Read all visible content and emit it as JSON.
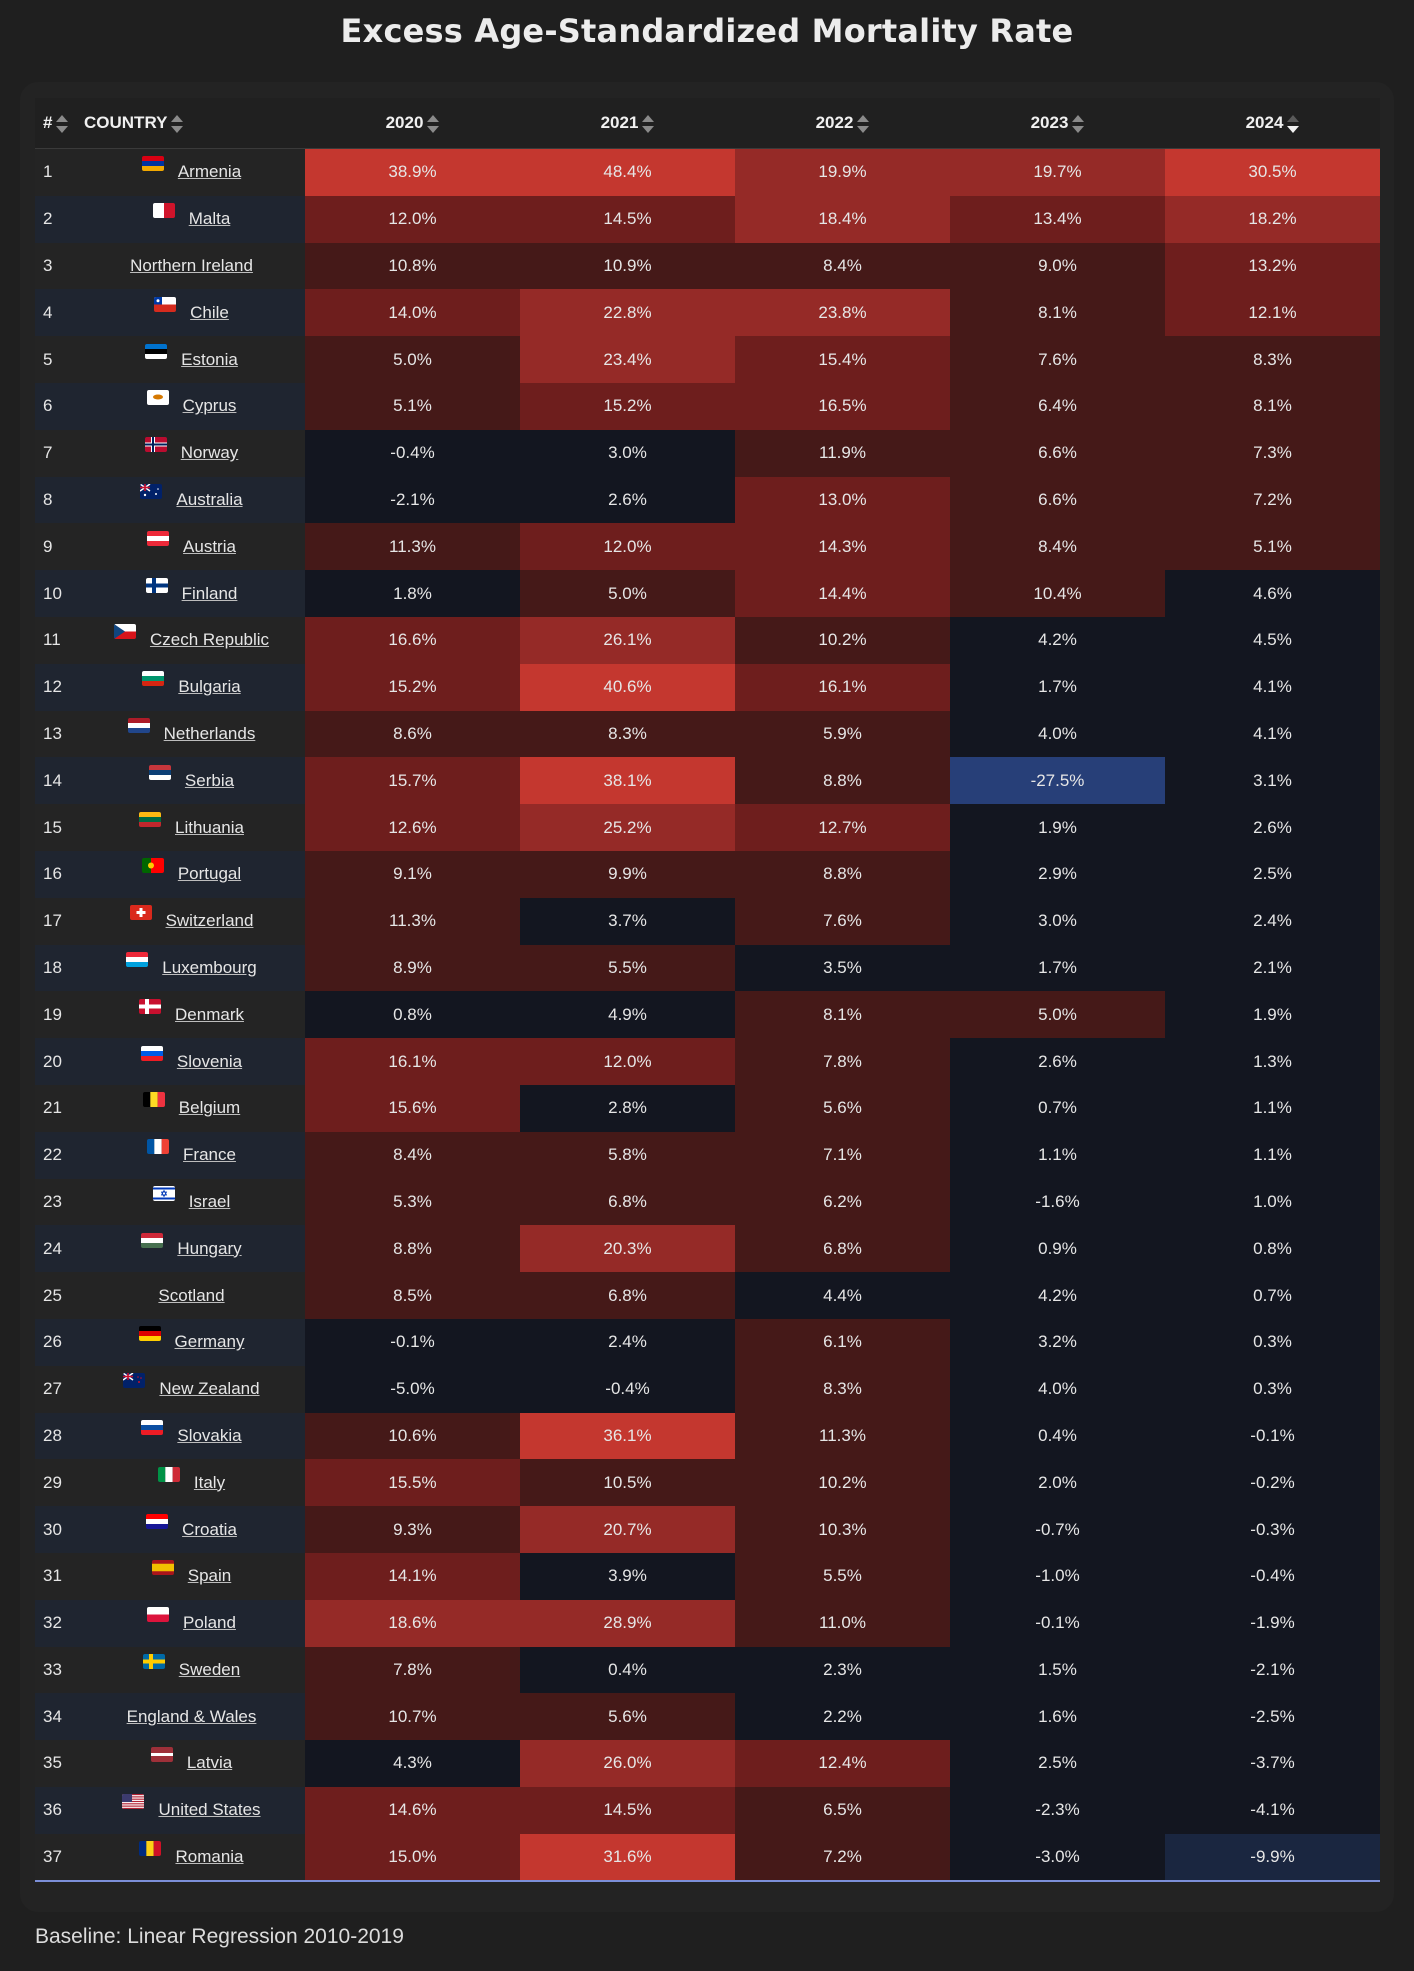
{
  "title": "Excess Age-Standardized Mortality Rate",
  "footer": "Baseline: Linear Regression 2010-2019",
  "colors": {
    "background": "#1f1f1f",
    "heat_very_high": "#c4372f",
    "heat_high": "#952a27",
    "heat_mid": "#6e1e1d",
    "heat_low": "#451918",
    "neutral": "#131620",
    "negative_mid": "#1a2640",
    "negative_strong": "#273f78",
    "sort_active": "#f2f2f2"
  },
  "table": {
    "headers": {
      "rank": "#",
      "country": "COUNTRY",
      "years": [
        "2020",
        "2021",
        "2022",
        "2023",
        "2024"
      ]
    },
    "sorted_column": "2024",
    "sort_direction": "descending",
    "rows": [
      {
        "rank": "1",
        "country": "Armenia",
        "flag": [
          "#d90012",
          "#0033a0",
          "#f2a800"
        ],
        "values": [
          "38.9%",
          "48.4%",
          "19.9%",
          "19.7%",
          "30.5%"
        ]
      },
      {
        "rank": "2",
        "country": "Malta",
        "flag": "malta",
        "values": [
          "12.0%",
          "14.5%",
          "18.4%",
          "13.4%",
          "18.2%"
        ]
      },
      {
        "rank": "3",
        "country": "Northern Ireland",
        "flag": null,
        "values": [
          "10.8%",
          "10.9%",
          "8.4%",
          "9.0%",
          "13.2%"
        ]
      },
      {
        "rank": "4",
        "country": "Chile",
        "flag": "chile",
        "values": [
          "14.0%",
          "22.8%",
          "23.8%",
          "8.1%",
          "12.1%"
        ]
      },
      {
        "rank": "5",
        "country": "Estonia",
        "flag": [
          "#0072ce",
          "#000000",
          "#ffffff"
        ],
        "values": [
          "5.0%",
          "23.4%",
          "15.4%",
          "7.6%",
          "8.3%"
        ]
      },
      {
        "rank": "6",
        "country": "Cyprus",
        "flag": "cyprus",
        "values": [
          "5.1%",
          "15.2%",
          "16.5%",
          "6.4%",
          "8.1%"
        ]
      },
      {
        "rank": "7",
        "country": "Norway",
        "flag": "norway",
        "values": [
          "-0.4%",
          "3.0%",
          "11.9%",
          "6.6%",
          "7.3%"
        ]
      },
      {
        "rank": "8",
        "country": "Australia",
        "flag": "australia",
        "values": [
          "-2.1%",
          "2.6%",
          "13.0%",
          "6.6%",
          "7.2%"
        ]
      },
      {
        "rank": "9",
        "country": "Austria",
        "flag": [
          "#ed2939",
          "#ffffff",
          "#ed2939"
        ],
        "values": [
          "11.3%",
          "12.0%",
          "14.3%",
          "8.4%",
          "5.1%"
        ]
      },
      {
        "rank": "10",
        "country": "Finland",
        "flag": "finland",
        "values": [
          "1.8%",
          "5.0%",
          "14.4%",
          "10.4%",
          "4.6%"
        ]
      },
      {
        "rank": "11",
        "country": "Czech Republic",
        "flag": "czech",
        "values": [
          "16.6%",
          "26.1%",
          "10.2%",
          "4.2%",
          "4.5%"
        ]
      },
      {
        "rank": "12",
        "country": "Bulgaria",
        "flag": [
          "#ffffff",
          "#00966e",
          "#d62612"
        ],
        "values": [
          "15.2%",
          "40.6%",
          "16.1%",
          "1.7%",
          "4.1%"
        ]
      },
      {
        "rank": "13",
        "country": "Netherlands",
        "flag": [
          "#ae1c28",
          "#ffffff",
          "#21468b"
        ],
        "values": [
          "8.6%",
          "8.3%",
          "5.9%",
          "4.0%",
          "4.1%"
        ]
      },
      {
        "rank": "14",
        "country": "Serbia",
        "flag": [
          "#c6363c",
          "#0c4076",
          "#ffffff"
        ],
        "values": [
          "15.7%",
          "38.1%",
          "8.8%",
          "-27.5%",
          "3.1%"
        ]
      },
      {
        "rank": "15",
        "country": "Lithuania",
        "flag": [
          "#fdb913",
          "#006a44",
          "#c1272d"
        ],
        "values": [
          "12.6%",
          "25.2%",
          "12.7%",
          "1.9%",
          "2.6%"
        ]
      },
      {
        "rank": "16",
        "country": "Portugal",
        "flag": "portugal",
        "values": [
          "9.1%",
          "9.9%",
          "8.8%",
          "2.9%",
          "2.5%"
        ]
      },
      {
        "rank": "17",
        "country": "Switzerland",
        "flag": "switzerland",
        "values": [
          "11.3%",
          "3.7%",
          "7.6%",
          "3.0%",
          "2.4%"
        ]
      },
      {
        "rank": "18",
        "country": "Luxembourg",
        "flag": [
          "#ed2939",
          "#ffffff",
          "#00a1de"
        ],
        "values": [
          "8.9%",
          "5.5%",
          "3.5%",
          "1.7%",
          "2.1%"
        ]
      },
      {
        "rank": "19",
        "country": "Denmark",
        "flag": "denmark",
        "values": [
          "0.8%",
          "4.9%",
          "8.1%",
          "5.0%",
          "1.9%"
        ]
      },
      {
        "rank": "20",
        "country": "Slovenia",
        "flag": [
          "#ffffff",
          "#005ce6",
          "#ed1c24"
        ],
        "values": [
          "16.1%",
          "12.0%",
          "7.8%",
          "2.6%",
          "1.3%"
        ]
      },
      {
        "rank": "21",
        "country": "Belgium",
        "flag": "belgium",
        "values": [
          "15.6%",
          "2.8%",
          "5.6%",
          "0.7%",
          "1.1%"
        ]
      },
      {
        "rank": "22",
        "country": "France",
        "flag": "france",
        "values": [
          "8.4%",
          "5.8%",
          "7.1%",
          "1.1%",
          "1.1%"
        ]
      },
      {
        "rank": "23",
        "country": "Israel",
        "flag": "israel",
        "values": [
          "5.3%",
          "6.8%",
          "6.2%",
          "-1.6%",
          "1.0%"
        ]
      },
      {
        "rank": "24",
        "country": "Hungary",
        "flag": [
          "#ce2939",
          "#ffffff",
          "#477050"
        ],
        "values": [
          "8.8%",
          "20.3%",
          "6.8%",
          "0.9%",
          "0.8%"
        ]
      },
      {
        "rank": "25",
        "country": "Scotland",
        "flag": null,
        "values": [
          "8.5%",
          "6.8%",
          "4.4%",
          "4.2%",
          "0.7%"
        ]
      },
      {
        "rank": "26",
        "country": "Germany",
        "flag": [
          "#000000",
          "#dd0000",
          "#ffce00"
        ],
        "values": [
          "-0.1%",
          "2.4%",
          "6.1%",
          "3.2%",
          "0.3%"
        ]
      },
      {
        "rank": "27",
        "country": "New Zealand",
        "flag": "newzealand",
        "values": [
          "-5.0%",
          "-0.4%",
          "8.3%",
          "4.0%",
          "0.3%"
        ]
      },
      {
        "rank": "28",
        "country": "Slovakia",
        "flag": [
          "#ffffff",
          "#0b4ea2",
          "#ee1c25"
        ],
        "values": [
          "10.6%",
          "36.1%",
          "11.3%",
          "0.4%",
          "-0.1%"
        ]
      },
      {
        "rank": "29",
        "country": "Italy",
        "flag": "italy",
        "values": [
          "15.5%",
          "10.5%",
          "10.2%",
          "2.0%",
          "-0.2%"
        ]
      },
      {
        "rank": "30",
        "country": "Croatia",
        "flag": [
          "#ff0000",
          "#ffffff",
          "#171796"
        ],
        "values": [
          "9.3%",
          "20.7%",
          "10.3%",
          "-0.7%",
          "-0.3%"
        ]
      },
      {
        "rank": "31",
        "country": "Spain",
        "flag": "spain",
        "values": [
          "14.1%",
          "3.9%",
          "5.5%",
          "-1.0%",
          "-0.4%"
        ]
      },
      {
        "rank": "32",
        "country": "Poland",
        "flag": [
          "#ffffff",
          "#dc143c"
        ],
        "values": [
          "18.6%",
          "28.9%",
          "11.0%",
          "-0.1%",
          "-1.9%"
        ]
      },
      {
        "rank": "33",
        "country": "Sweden",
        "flag": "sweden",
        "values": [
          "7.8%",
          "0.4%",
          "2.3%",
          "1.5%",
          "-2.1%"
        ]
      },
      {
        "rank": "34",
        "country": "England & Wales",
        "flag": null,
        "values": [
          "10.7%",
          "5.6%",
          "2.2%",
          "1.6%",
          "-2.5%"
        ]
      },
      {
        "rank": "35",
        "country": "Latvia",
        "flag": "latvia",
        "values": [
          "4.3%",
          "26.0%",
          "12.4%",
          "2.5%",
          "-3.7%"
        ]
      },
      {
        "rank": "36",
        "country": "United States",
        "flag": "usa",
        "values": [
          "14.6%",
          "14.5%",
          "6.5%",
          "-2.3%",
          "-4.1%"
        ]
      },
      {
        "rank": "37",
        "country": "Romania",
        "flag": "romania",
        "values": [
          "15.0%",
          "31.6%",
          "7.2%",
          "-3.0%",
          "-9.9%"
        ]
      }
    ]
  }
}
